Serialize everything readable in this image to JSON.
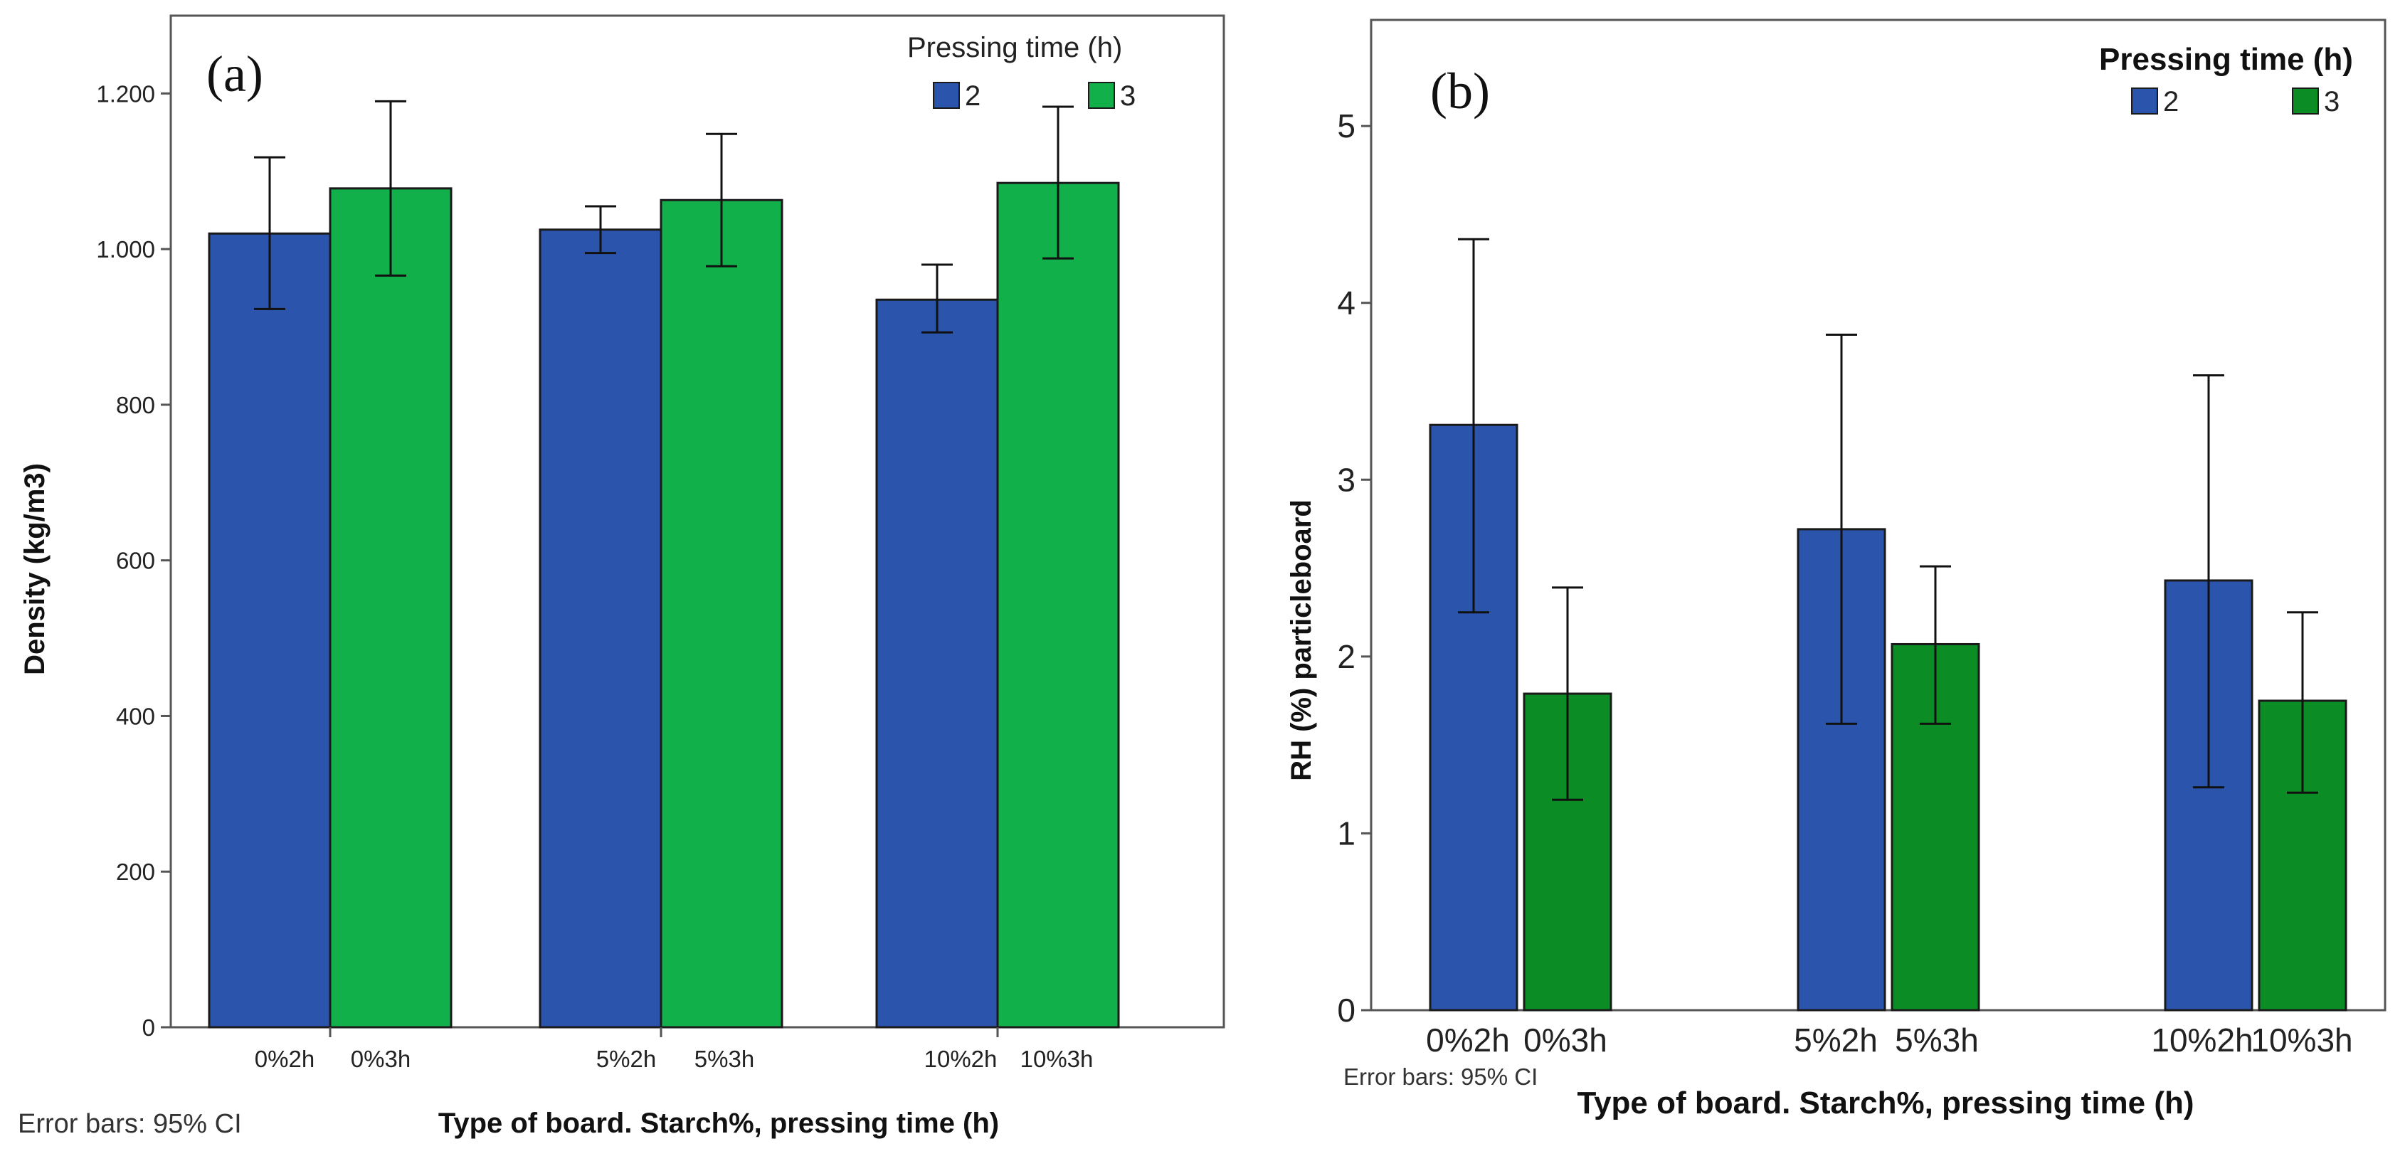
{
  "chart_data": [
    {
      "panel_label": "(a)",
      "type": "bar",
      "categories": [
        "0%",
        "5%",
        "10%"
      ],
      "category_labels": [
        [
          "0%2h",
          "0%3h"
        ],
        [
          "5%2h",
          "5%3h"
        ],
        [
          "10%2h",
          "10%3h"
        ]
      ],
      "series": [
        {
          "name": "2",
          "color": "#2b54ad",
          "values": [
            1020,
            1025,
            935
          ],
          "ci_low": [
            923,
            995,
            893
          ],
          "ci_high": [
            1118,
            1055,
            980
          ]
        },
        {
          "name": "3",
          "color": "#12b04a",
          "values": [
            1078,
            1063,
            1085
          ],
          "ci_low": [
            966,
            978,
            988
          ],
          "ci_high": [
            1190,
            1148,
            1183
          ]
        }
      ],
      "ylabel": "Density (kg/m3)",
      "xlabel": "Type of board. Starch%, pressing time (h)",
      "ylim": [
        0,
        1300
      ],
      "yticks": [
        0,
        200,
        400,
        600,
        800,
        1000,
        1200
      ],
      "ytick_labels": [
        "0",
        "200",
        "400",
        "600",
        "800",
        "1.000",
        "1.200"
      ],
      "legend_title": "Pressing time (h)",
      "legend_position": "top-right",
      "error_note": "Error bars: 95% CI"
    },
    {
      "panel_label": "(b)",
      "type": "bar",
      "categories": [
        "0%",
        "5%",
        "10%"
      ],
      "category_labels": [
        [
          "0%2h",
          "0%3h"
        ],
        [
          "5%2h",
          "5%3h"
        ],
        [
          "10%2h",
          "10%3h"
        ]
      ],
      "series": [
        {
          "name": "2",
          "color": "#2b54ad",
          "values": [
            3.31,
            2.72,
            2.43
          ],
          "ci_low": [
            2.25,
            1.62,
            1.26
          ],
          "ci_high": [
            4.36,
            3.82,
            3.59
          ]
        },
        {
          "name": "3",
          "color": "#0c8c24",
          "values": [
            1.79,
            2.07,
            1.75
          ],
          "ci_low": [
            1.19,
            1.62,
            1.23
          ],
          "ci_high": [
            2.39,
            2.51,
            2.25
          ]
        }
      ],
      "ylabel": "RH (%) particleboard",
      "xlabel": "Type of board. Starch%, pressing time (h)",
      "ylim": [
        0,
        5.6
      ],
      "yticks": [
        0,
        1,
        2,
        3,
        4,
        5
      ],
      "ytick_labels": [
        "0",
        "1",
        "2",
        "3",
        "4",
        "5"
      ],
      "legend_title": "Pressing time (h)",
      "legend_position": "top-right",
      "error_note": "Error bars: 95% CI"
    }
  ]
}
